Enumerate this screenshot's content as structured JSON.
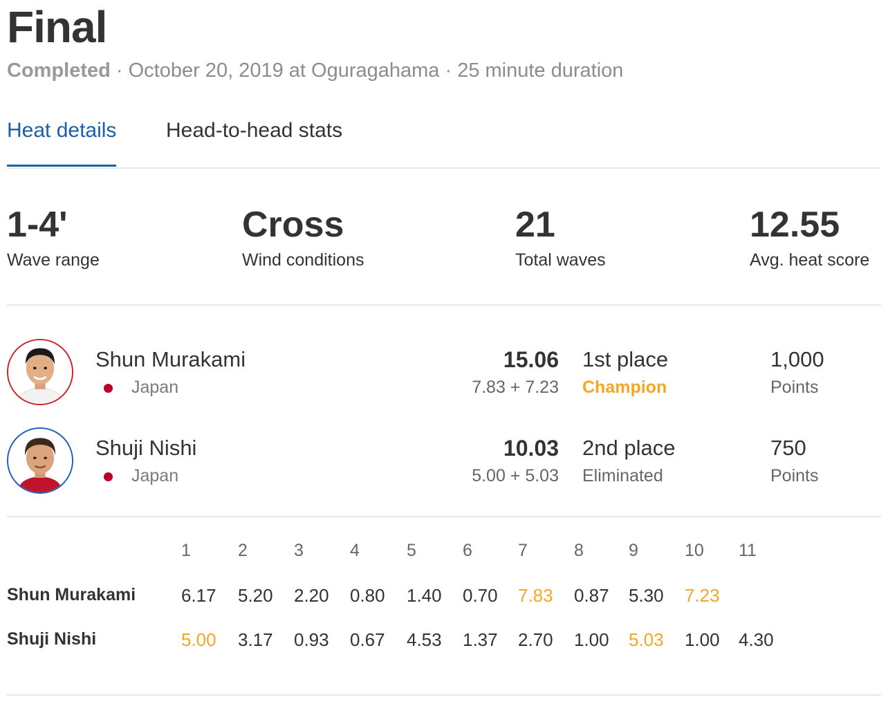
{
  "heat": {
    "title": "Final",
    "status": "Completed",
    "details": "· October 20, 2019 at Oguragahama · 25 minute duration"
  },
  "tabs": [
    {
      "label": "Heat details",
      "active": true
    },
    {
      "label": "Head-to-head stats",
      "active": false
    }
  ],
  "stats": [
    {
      "value": "1-4'",
      "label": "Wave range"
    },
    {
      "value": "Cross",
      "label": "Wind conditions"
    },
    {
      "value": "21",
      "label": "Total waves"
    },
    {
      "value": "12.55",
      "label": "Avg. heat score"
    }
  ],
  "competitors": [
    {
      "name": "Shun Murakami",
      "country": "Japan",
      "total": "15.06",
      "best_waves": "7.83 + 7.23",
      "place": "1st place",
      "result": "Champion",
      "points": "1,000",
      "points_label": "Points",
      "jersey_color": "#d0202e"
    },
    {
      "name": "Shuji Nishi",
      "country": "Japan",
      "total": "10.03",
      "best_waves": "5.00 + 5.03",
      "place": "2nd place",
      "result": "Eliminated",
      "points": "750",
      "points_label": "Points",
      "jersey_color": "#1e5bbd"
    }
  ],
  "wave_table": {
    "headers": [
      "1",
      "2",
      "3",
      "4",
      "5",
      "6",
      "7",
      "8",
      "9",
      "10",
      "11"
    ],
    "rows": [
      {
        "name": "Shun Murakami",
        "scores": [
          "6.17",
          "5.20",
          "2.20",
          "0.80",
          "1.40",
          "0.70",
          "7.83",
          "0.87",
          "5.30",
          "7.23",
          ""
        ],
        "highlight": [
          6,
          9
        ]
      },
      {
        "name": "Shuji Nishi",
        "scores": [
          "5.00",
          "3.17",
          "0.93",
          "0.67",
          "4.53",
          "1.37",
          "2.70",
          "1.00",
          "5.03",
          "1.00",
          "4.30"
        ],
        "highlight": [
          0,
          8
        ]
      }
    ],
    "highlight_color": "#f5a623"
  },
  "colors": {
    "accent": "#1a5fa8",
    "champion": "#f5a623",
    "japan_flag": "#bc002d"
  }
}
